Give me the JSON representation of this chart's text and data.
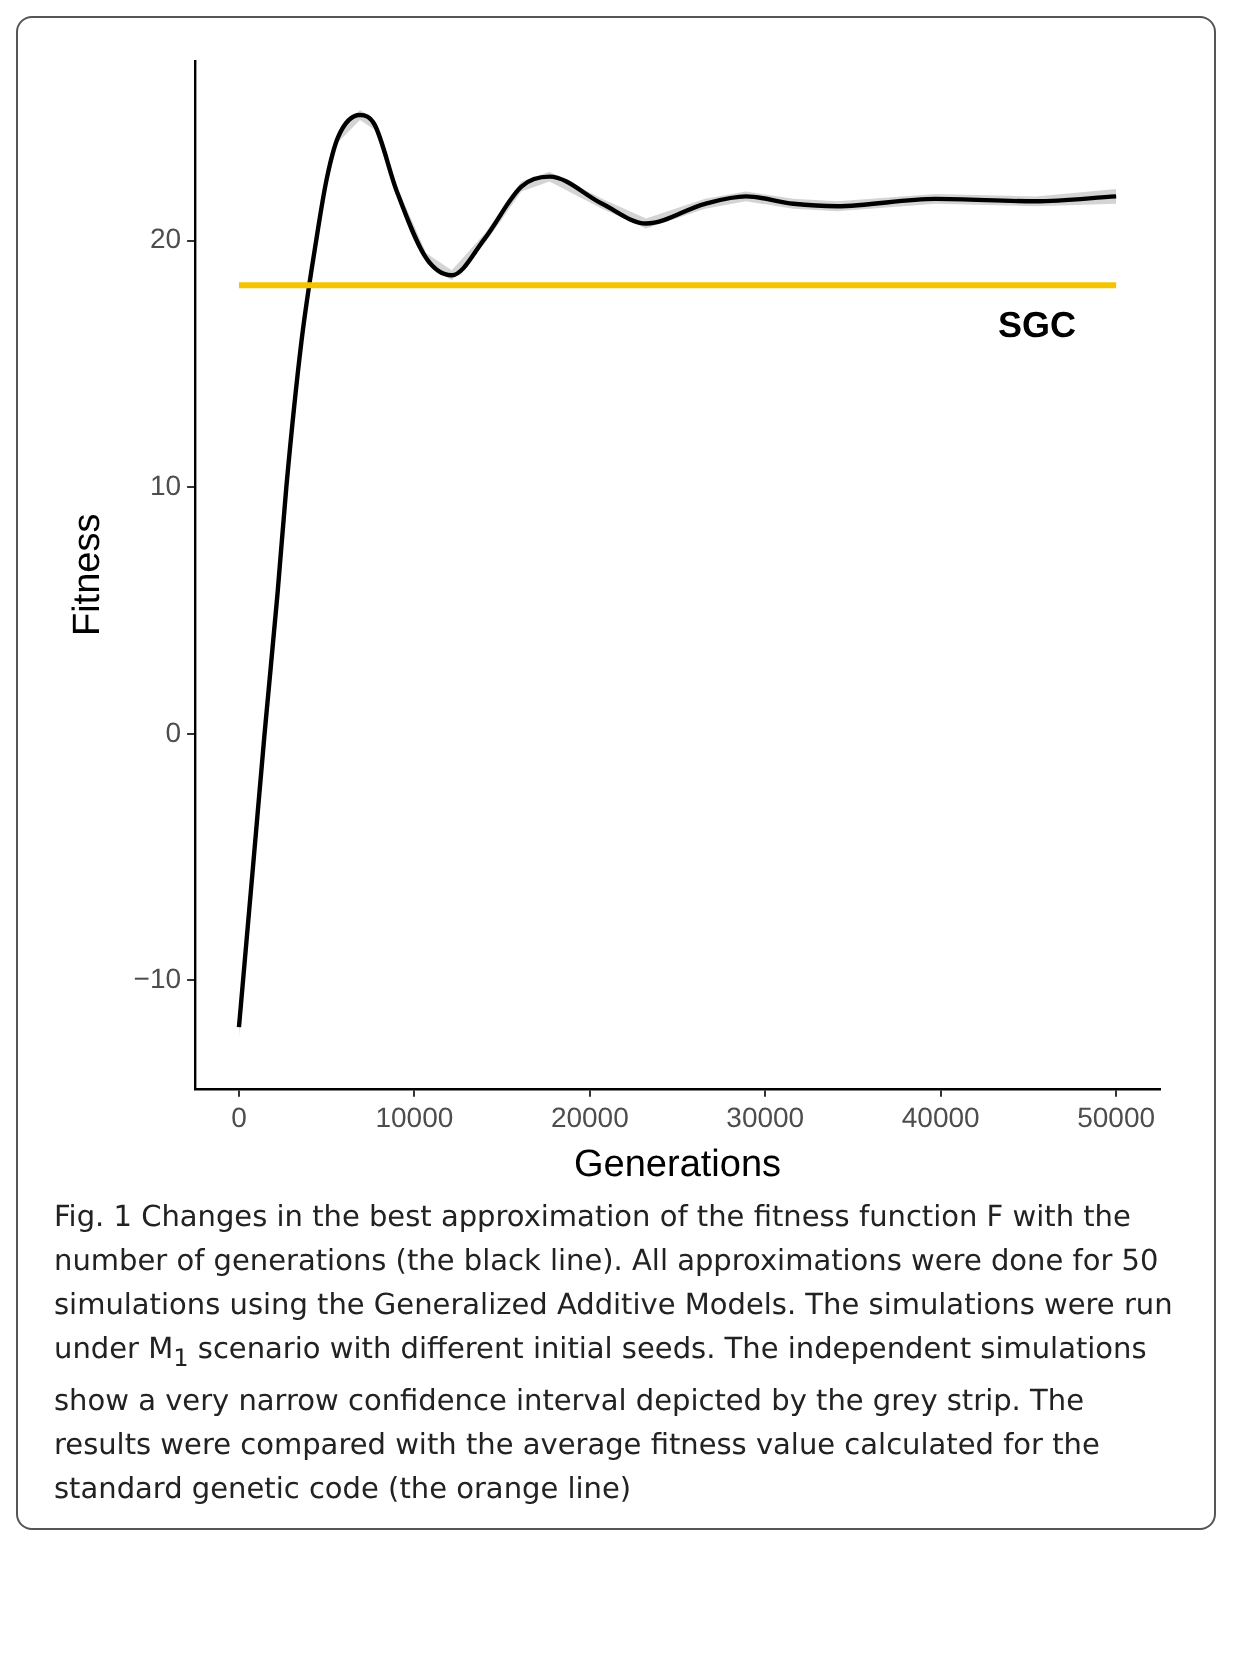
{
  "chart_data": {
    "type": "line",
    "xlabel": "Generations",
    "ylabel": "Fitness",
    "xlim": [
      -2500,
      52500
    ],
    "ylim": [
      -14.4,
      27.3
    ],
    "xticks": [
      0,
      10000,
      20000,
      30000,
      40000,
      50000
    ],
    "yticks": [
      -10,
      0,
      10,
      20
    ],
    "grid": false,
    "legend": false,
    "series": [
      {
        "color": "#000000",
        "x": [
          0,
          800,
          1460,
          2200,
          2700,
          3560,
          4400,
          5000,
          5650,
          6900,
          7740,
          9000,
          10670,
          12130,
          14020,
          16100,
          17700,
          20700,
          23200,
          26570,
          28900,
          31600,
          34100,
          39700,
          45400,
          50000
        ],
        "values": [
          -11.9,
          -5.4,
          0,
          5.7,
          10,
          15.9,
          20,
          22.5,
          24.2,
          25.1,
          24.7,
          22.0,
          19.3,
          18.6,
          20.1,
          22.2,
          22.6,
          21.5,
          20.7,
          21.5,
          21.8,
          21.5,
          21.4,
          21.7,
          21.6,
          21.8
        ],
        "lower": [
          -12.3,
          -5.7,
          -0.2,
          5.5,
          9.8,
          15.7,
          19.8,
          22.3,
          24.0,
          24.9,
          24.5,
          21.8,
          19.1,
          18.4,
          19.9,
          22.0,
          22.4,
          21.3,
          20.5,
          21.3,
          21.6,
          21.3,
          21.2,
          21.5,
          21.4,
          21.5
        ],
        "upper": [
          -11.5,
          -5.1,
          0.2,
          5.9,
          10.2,
          16.1,
          20.2,
          22.7,
          24.4,
          25.3,
          24.9,
          22.2,
          19.5,
          18.8,
          20.3,
          22.4,
          22.8,
          21.7,
          20.9,
          21.7,
          22.0,
          21.7,
          21.6,
          21.9,
          21.8,
          22.1
        ]
      }
    ],
    "ref_lines": [
      {
        "axis": "y",
        "value": 18.2,
        "label": "SGC",
        "color": "#f5c400"
      }
    ],
    "annotations": [
      "Fig. 1 Changes in the best approximation of the fitness function F with the number of generations (the black line). All approximations were done for 50 simulations using the Generalized Additive Models. The simulations were run under M$_{1}$ scenario with different initial seeds. The independent simulations show a very narrow confidence interval depicted by the grey strip. The results were compared with the average fitness value calculated for the standard genetic code (the orange line)"
    ]
  }
}
